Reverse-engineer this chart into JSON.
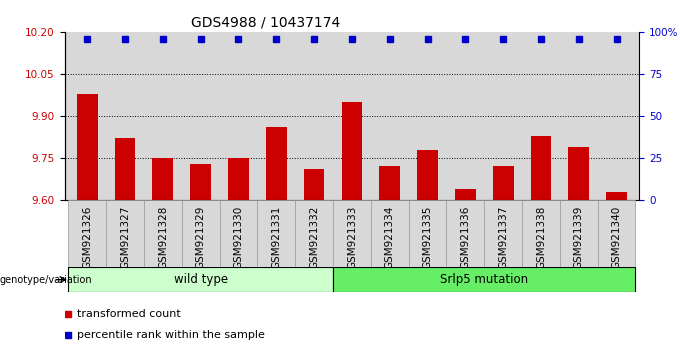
{
  "title": "GDS4988 / 10437174",
  "samples": [
    "GSM921326",
    "GSM921327",
    "GSM921328",
    "GSM921329",
    "GSM921330",
    "GSM921331",
    "GSM921332",
    "GSM921333",
    "GSM921334",
    "GSM921335",
    "GSM921336",
    "GSM921337",
    "GSM921338",
    "GSM921339",
    "GSM921340"
  ],
  "bar_values": [
    9.98,
    9.82,
    9.75,
    9.73,
    9.75,
    9.86,
    9.71,
    9.95,
    9.72,
    9.78,
    9.64,
    9.72,
    9.83,
    9.79,
    9.63
  ],
  "percentile_values": [
    96,
    96,
    96,
    96,
    96,
    96,
    96,
    96,
    96,
    96,
    96,
    96,
    96,
    96,
    96
  ],
  "bar_color": "#cc0000",
  "dot_color": "#0000cc",
  "ylim_left": [
    9.6,
    10.2
  ],
  "ylim_right": [
    0,
    100
  ],
  "yticks_left": [
    9.6,
    9.75,
    9.9,
    10.05,
    10.2
  ],
  "yticks_right": [
    0,
    25,
    50,
    75,
    100
  ],
  "ytick_labels_right": [
    "0",
    "25",
    "50",
    "75",
    "100%"
  ],
  "hlines": [
    9.75,
    9.9,
    10.05
  ],
  "group1_label": "wild type",
  "group2_label": "Srlp5 mutation",
  "group1_count": 7,
  "group2_count": 8,
  "genotype_label": "genotype/variation",
  "legend_bar_label": "transformed count",
  "legend_dot_label": "percentile rank within the sample",
  "group1_color": "#ccffcc",
  "group2_color": "#66ee66",
  "bar_bg_color": "#d8d8d8",
  "title_fontsize": 10,
  "tick_fontsize": 7.5,
  "label_fontsize": 8.5
}
